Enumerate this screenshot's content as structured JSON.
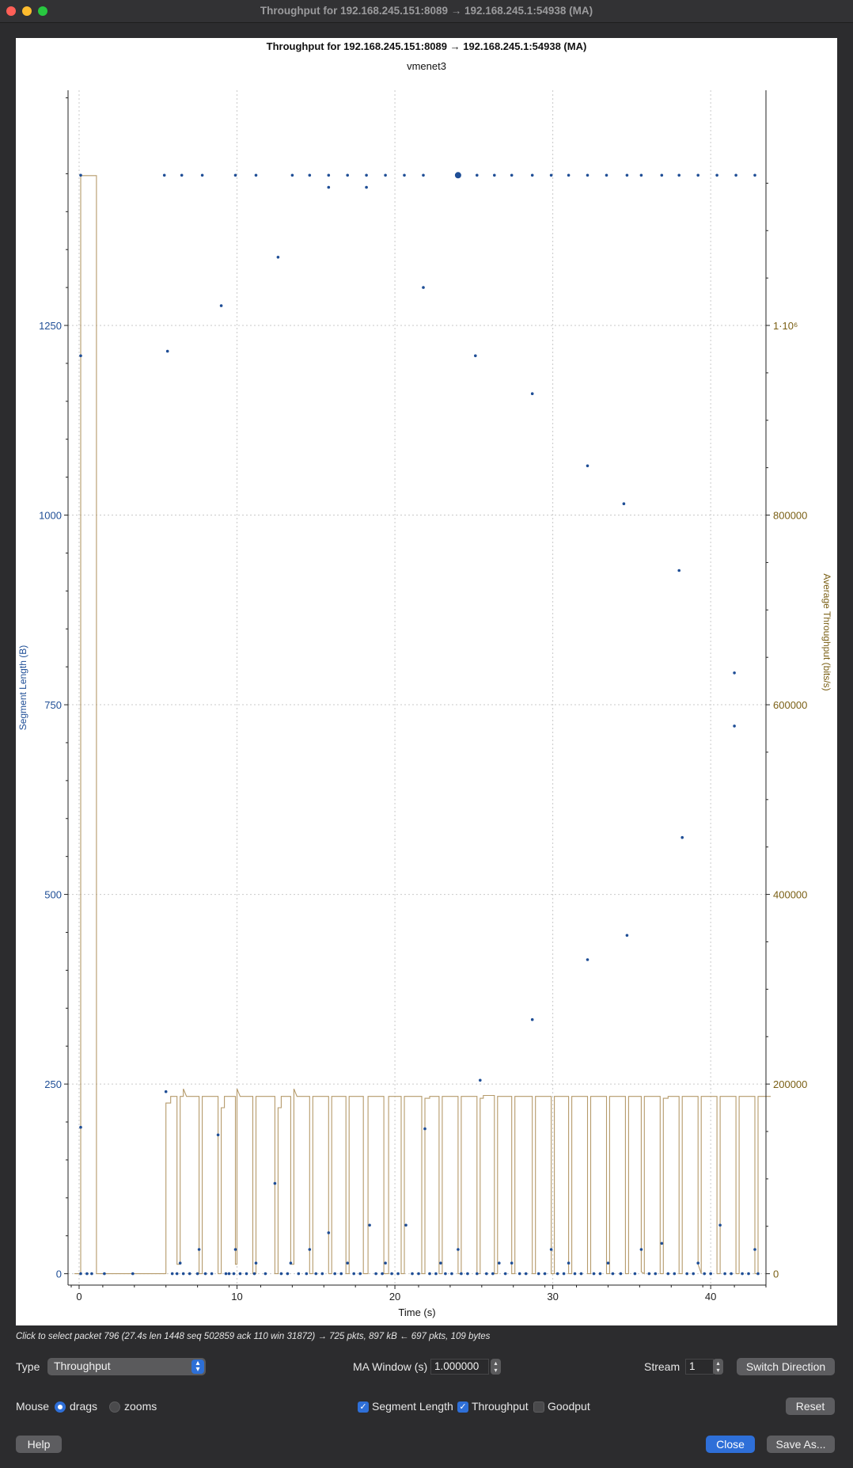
{
  "window": {
    "title": "Throughput for 192.168.245.151:8089 → 192.168.245.1:54938 (MA)"
  },
  "chart_data": {
    "type": "scatter",
    "title": "Throughput for 192.168.245.151:8089 → 192.168.245.1:54938 (MA)",
    "subtitle": "vmenet3",
    "xlabel": "Time (s)",
    "ylabel": "Segment Length (B)",
    "y2label": "Average Throughput (bits/s)",
    "xlim": [
      -0.7,
      43.5
    ],
    "ylim": [
      -15,
      1560
    ],
    "y2lim": [
      -12000,
      1248000
    ],
    "x_ticks": [
      0,
      10,
      20,
      30,
      40
    ],
    "y_ticks": [
      0,
      250,
      500,
      750,
      1000,
      1250
    ],
    "y2_ticks": [
      0,
      200000,
      400000,
      600000,
      800000,
      1000000
    ],
    "y2_tick_labels": [
      "0",
      "200000",
      "400000",
      "600000",
      "800000",
      "1·10⁶"
    ],
    "grid": true,
    "colors": {
      "segment": "#1f4e96",
      "throughput": "#b59a6a",
      "left_axis_text": "#1f4e96",
      "right_axis_text": "#7a5f14"
    },
    "series": [
      {
        "name": "Segment Length",
        "kind": "scatter",
        "points": [
          [
            0.1,
            1448
          ],
          [
            0.1,
            1210
          ],
          [
            0.1,
            193
          ],
          [
            0.1,
            0
          ],
          [
            0.5,
            0
          ],
          [
            0.8,
            0
          ],
          [
            1.6,
            0
          ],
          [
            3.4,
            0
          ],
          [
            5.4,
            1448
          ],
          [
            5.5,
            240
          ],
          [
            5.6,
            1216
          ],
          [
            5.9,
            0
          ],
          [
            6.2,
            0
          ],
          [
            6.4,
            14
          ],
          [
            6.6,
            0
          ],
          [
            7.0,
            0
          ],
          [
            6.5,
            1448
          ],
          [
            7.5,
            0
          ],
          [
            7.6,
            32
          ],
          [
            7.8,
            1448
          ],
          [
            8.0,
            0
          ],
          [
            8.4,
            0
          ],
          [
            8.8,
            183
          ],
          [
            9.0,
            1276
          ],
          [
            9.3,
            0
          ],
          [
            9.5,
            0
          ],
          [
            9.8,
            0
          ],
          [
            9.9,
            1448
          ],
          [
            9.9,
            32
          ],
          [
            10.2,
            0
          ],
          [
            10.6,
            0
          ],
          [
            11.1,
            0
          ],
          [
            11.2,
            14
          ],
          [
            11.2,
            1448
          ],
          [
            11.8,
            0
          ],
          [
            12.4,
            119
          ],
          [
            12.6,
            1340
          ],
          [
            12.8,
            0
          ],
          [
            13.2,
            0
          ],
          [
            13.4,
            14
          ],
          [
            13.5,
            1448
          ],
          [
            13.9,
            0
          ],
          [
            14.4,
            0
          ],
          [
            14.6,
            32
          ],
          [
            14.6,
            1448
          ],
          [
            15.0,
            0
          ],
          [
            15.4,
            0
          ],
          [
            15.8,
            54
          ],
          [
            15.8,
            1448
          ],
          [
            15.8,
            1432
          ],
          [
            16.2,
            0
          ],
          [
            16.6,
            0
          ],
          [
            17.0,
            14
          ],
          [
            17.0,
            1448
          ],
          [
            17.4,
            0
          ],
          [
            17.8,
            0
          ],
          [
            18.2,
            1448
          ],
          [
            18.2,
            1432
          ],
          [
            18.4,
            64
          ],
          [
            18.8,
            0
          ],
          [
            19.2,
            0
          ],
          [
            19.4,
            14
          ],
          [
            19.4,
            1448
          ],
          [
            19.8,
            0
          ],
          [
            20.2,
            0
          ],
          [
            20.6,
            1448
          ],
          [
            20.7,
            64
          ],
          [
            21.1,
            0
          ],
          [
            21.5,
            0
          ],
          [
            21.8,
            1300
          ],
          [
            21.8,
            1448
          ],
          [
            21.9,
            191
          ],
          [
            22.2,
            0
          ],
          [
            22.6,
            0
          ],
          [
            22.9,
            14
          ],
          [
            23.2,
            0
          ],
          [
            23.6,
            0
          ],
          [
            24.0,
            1448
          ],
          [
            24.0,
            32
          ],
          [
            24.2,
            0
          ],
          [
            24.6,
            0
          ],
          [
            25.2,
            0
          ],
          [
            25.2,
            1448
          ],
          [
            25.1,
            1210
          ],
          [
            25.4,
            255
          ],
          [
            25.8,
            0
          ],
          [
            26.2,
            0
          ],
          [
            26.3,
            1448
          ],
          [
            26.6,
            14
          ],
          [
            27.0,
            0
          ],
          [
            27.4,
            1448
          ],
          [
            27.4,
            14
          ],
          [
            27.9,
            0
          ],
          [
            28.3,
            0
          ],
          [
            28.7,
            1448
          ],
          [
            28.7,
            1160
          ],
          [
            28.7,
            335
          ],
          [
            29.1,
            0
          ],
          [
            29.5,
            0
          ],
          [
            29.9,
            1448
          ],
          [
            29.9,
            32
          ],
          [
            30.3,
            0
          ],
          [
            30.7,
            0
          ],
          [
            31.0,
            1448
          ],
          [
            31.0,
            14
          ],
          [
            31.4,
            0
          ],
          [
            31.8,
            0
          ],
          [
            32.2,
            1065
          ],
          [
            32.2,
            414
          ],
          [
            32.2,
            1448
          ],
          [
            32.6,
            0
          ],
          [
            33.0,
            0
          ],
          [
            33.4,
            1448
          ],
          [
            33.5,
            14
          ],
          [
            33.8,
            0
          ],
          [
            34.3,
            0
          ],
          [
            34.5,
            1015
          ],
          [
            34.7,
            1448
          ],
          [
            34.7,
            446
          ],
          [
            35.2,
            0
          ],
          [
            35.6,
            1448
          ],
          [
            35.6,
            32
          ],
          [
            36.1,
            0
          ],
          [
            36.5,
            0
          ],
          [
            36.9,
            1448
          ],
          [
            36.9,
            40
          ],
          [
            37.3,
            0
          ],
          [
            37.7,
            0
          ],
          [
            38.0,
            1448
          ],
          [
            38.0,
            927
          ],
          [
            38.2,
            575
          ],
          [
            38.5,
            0
          ],
          [
            38.9,
            0
          ],
          [
            39.2,
            1448
          ],
          [
            39.2,
            14
          ],
          [
            39.6,
            0
          ],
          [
            40.0,
            0
          ],
          [
            40.4,
            1448
          ],
          [
            40.6,
            64
          ],
          [
            40.9,
            0
          ],
          [
            41.3,
            0
          ],
          [
            41.6,
            1448
          ],
          [
            41.5,
            792
          ],
          [
            41.5,
            722
          ],
          [
            42.0,
            0
          ],
          [
            42.4,
            0
          ],
          [
            42.8,
            1448
          ],
          [
            42.8,
            32
          ],
          [
            43.0,
            0
          ]
        ],
        "emphasized_point": [
          24.0,
          1448
        ]
      },
      {
        "name": "Throughput",
        "kind": "step-line",
        "points": [
          [
            -0.3,
            0
          ],
          [
            0.1,
            0
          ],
          [
            0.1,
            1158000
          ],
          [
            1.1,
            1158000
          ],
          [
            1.1,
            0
          ],
          [
            5.5,
            0
          ],
          [
            5.5,
            180000
          ],
          [
            5.8,
            180000
          ],
          [
            5.8,
            187000
          ],
          [
            6.2,
            187000
          ],
          [
            6.2,
            10000
          ],
          [
            6.4,
            10000
          ],
          [
            6.4,
            187000
          ],
          [
            6.6,
            187000
          ],
          [
            6.6,
            195000
          ],
          [
            6.8,
            187000
          ],
          [
            7.6,
            187000
          ],
          [
            7.6,
            0
          ],
          [
            7.8,
            0
          ],
          [
            7.8,
            187000
          ],
          [
            8.8,
            187000
          ],
          [
            8.8,
            0
          ],
          [
            9.0,
            0
          ],
          [
            9.0,
            175000
          ],
          [
            9.2,
            175000
          ],
          [
            9.2,
            187000
          ],
          [
            9.9,
            187000
          ],
          [
            9.9,
            10000
          ],
          [
            10.0,
            10000
          ],
          [
            10.0,
            195000
          ],
          [
            10.2,
            187000
          ],
          [
            11.0,
            187000
          ],
          [
            11.0,
            0
          ],
          [
            11.2,
            0
          ],
          [
            11.2,
            187000
          ],
          [
            12.4,
            187000
          ],
          [
            12.4,
            0
          ],
          [
            12.6,
            0
          ],
          [
            12.6,
            175000
          ],
          [
            12.8,
            175000
          ],
          [
            12.8,
            187000
          ],
          [
            13.4,
            187000
          ],
          [
            13.4,
            10000
          ],
          [
            13.6,
            10000
          ],
          [
            13.6,
            195000
          ],
          [
            13.8,
            187000
          ],
          [
            14.6,
            187000
          ],
          [
            14.6,
            0
          ],
          [
            14.8,
            0
          ],
          [
            14.8,
            187000
          ],
          [
            15.8,
            187000
          ],
          [
            15.8,
            0
          ],
          [
            16.0,
            0
          ],
          [
            16.0,
            187000
          ],
          [
            16.9,
            187000
          ],
          [
            16.9,
            0
          ],
          [
            17.1,
            0
          ],
          [
            17.1,
            187000
          ],
          [
            18.0,
            187000
          ],
          [
            18.0,
            0
          ],
          [
            18.3,
            0
          ],
          [
            18.3,
            187000
          ],
          [
            19.3,
            187000
          ],
          [
            19.3,
            0
          ],
          [
            19.6,
            0
          ],
          [
            19.6,
            187000
          ],
          [
            20.4,
            187000
          ],
          [
            20.4,
            0
          ],
          [
            20.6,
            0
          ],
          [
            20.6,
            187000
          ],
          [
            21.7,
            187000
          ],
          [
            21.7,
            0
          ],
          [
            21.9,
            0
          ],
          [
            21.9,
            185000
          ],
          [
            22.2,
            185000
          ],
          [
            22.2,
            187000
          ],
          [
            22.8,
            187000
          ],
          [
            22.8,
            0
          ],
          [
            23.0,
            0
          ],
          [
            23.0,
            187000
          ],
          [
            24.0,
            187000
          ],
          [
            24.0,
            0
          ],
          [
            24.2,
            0
          ],
          [
            24.2,
            187000
          ],
          [
            25.2,
            187000
          ],
          [
            25.2,
            0
          ],
          [
            25.4,
            0
          ],
          [
            25.4,
            185000
          ],
          [
            25.6,
            185000
          ],
          [
            25.6,
            188000
          ],
          [
            26.3,
            188000
          ],
          [
            26.3,
            0
          ],
          [
            26.5,
            0
          ],
          [
            26.5,
            187000
          ],
          [
            27.4,
            187000
          ],
          [
            27.4,
            0
          ],
          [
            27.6,
            0
          ],
          [
            27.6,
            187000
          ],
          [
            28.7,
            187000
          ],
          [
            28.7,
            0
          ],
          [
            28.9,
            0
          ],
          [
            28.9,
            187000
          ],
          [
            29.9,
            187000
          ],
          [
            29.9,
            0
          ],
          [
            30.1,
            0
          ],
          [
            30.1,
            187000
          ],
          [
            31.0,
            187000
          ],
          [
            31.0,
            0
          ],
          [
            31.2,
            0
          ],
          [
            31.2,
            187000
          ],
          [
            32.2,
            187000
          ],
          [
            32.2,
            0
          ],
          [
            32.4,
            0
          ],
          [
            32.4,
            187000
          ],
          [
            33.4,
            187000
          ],
          [
            33.4,
            0
          ],
          [
            33.6,
            0
          ],
          [
            33.6,
            187000
          ],
          [
            34.6,
            187000
          ],
          [
            34.6,
            0
          ],
          [
            34.8,
            0
          ],
          [
            34.8,
            187000
          ],
          [
            35.6,
            187000
          ],
          [
            35.6,
            2000
          ],
          [
            35.8,
            0
          ],
          [
            35.8,
            187000
          ],
          [
            36.8,
            187000
          ],
          [
            36.8,
            0
          ],
          [
            37.0,
            0
          ],
          [
            37.0,
            185000
          ],
          [
            37.3,
            185000
          ],
          [
            37.3,
            187000
          ],
          [
            38.0,
            187000
          ],
          [
            38.0,
            0
          ],
          [
            38.2,
            0
          ],
          [
            38.2,
            187000
          ],
          [
            39.2,
            187000
          ],
          [
            39.2,
            10000
          ],
          [
            39.4,
            0
          ],
          [
            39.4,
            187000
          ],
          [
            40.4,
            187000
          ],
          [
            40.4,
            0
          ],
          [
            40.6,
            0
          ],
          [
            40.6,
            187000
          ],
          [
            41.6,
            187000
          ],
          [
            41.6,
            0
          ],
          [
            41.8,
            0
          ],
          [
            41.8,
            187000
          ],
          [
            42.8,
            187000
          ],
          [
            42.8,
            0
          ],
          [
            43.0,
            0
          ],
          [
            43.0,
            187000
          ],
          [
            43.8,
            187000
          ]
        ]
      }
    ]
  },
  "status": {
    "text": "Click to select packet 796 (27.4s len 1448 seq 502859 ack 110 win 31872) → 725 pkts, 897 kB ← 697 pkts, 109 bytes"
  },
  "controls": {
    "type_label": "Type",
    "type_value": "Throughput",
    "ma_window_label": "MA Window (s)",
    "ma_window_value": "1.000000",
    "stream_label": "Stream",
    "stream_value": "1",
    "switch_direction": "Switch Direction",
    "mouse_label": "Mouse",
    "drags": "drags",
    "zooms": "zooms",
    "segment_length": "Segment Length",
    "throughput": "Throughput",
    "goodput": "Goodput",
    "reset": "Reset",
    "help": "Help",
    "close": "Close",
    "save_as": "Save As..."
  },
  "icons": {
    "select_arrows": "updown-chevron-icon",
    "stepper": "stepper-icon",
    "check": "checkmark-icon"
  }
}
